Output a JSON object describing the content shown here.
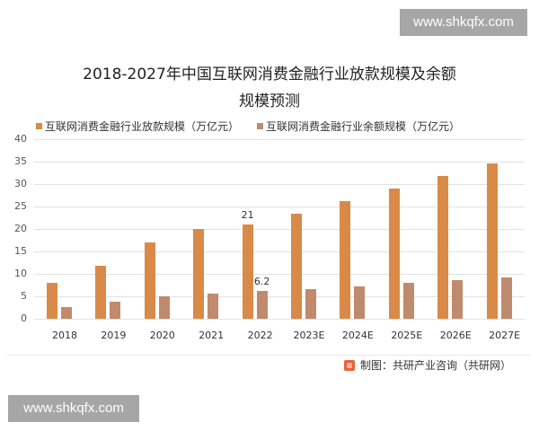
{
  "watermarks": {
    "top": "www.shkqfx.com",
    "bottom": "www.shkqfx.com"
  },
  "colors": {
    "loan": "#d98a48",
    "balance": "#c08a6c",
    "grid": "#e2e2e2"
  },
  "source": "制图：共研产业咨询（共研网）",
  "chart_data": {
    "type": "bar",
    "title": "2018-2027年中国互联网消费金融行业放款规模及余额规模预测",
    "title_lines": [
      "2018-2027年中国互联网消费金融行业放款规模及余额",
      "规模预测"
    ],
    "xlabel": "",
    "ylabel": "",
    "ylim": [
      0,
      40
    ],
    "yticks": [
      0,
      5,
      10,
      15,
      20,
      25,
      30,
      35,
      40
    ],
    "grid": true,
    "legend_position": "top",
    "categories": [
      "2018",
      "2019",
      "2020",
      "2021",
      "2022",
      "2023E",
      "2024E",
      "2025E",
      "2026E",
      "2027E"
    ],
    "series": [
      {
        "name": "互联网消费金融行业放款规模（万亿元）",
        "values": [
          8.1,
          11.9,
          17.0,
          20.0,
          21.0,
          23.5,
          26.3,
          29.0,
          31.8,
          34.7
        ]
      },
      {
        "name": "互联网消费金融行业余额规模（万亿元）",
        "values": [
          2.7,
          3.9,
          5.1,
          5.7,
          6.2,
          6.7,
          7.3,
          8.1,
          8.7,
          9.3
        ]
      }
    ],
    "annotations": [
      {
        "category": "2022",
        "series": 0,
        "text": "21"
      },
      {
        "category": "2022",
        "series": 1,
        "text": "6.2"
      }
    ]
  }
}
